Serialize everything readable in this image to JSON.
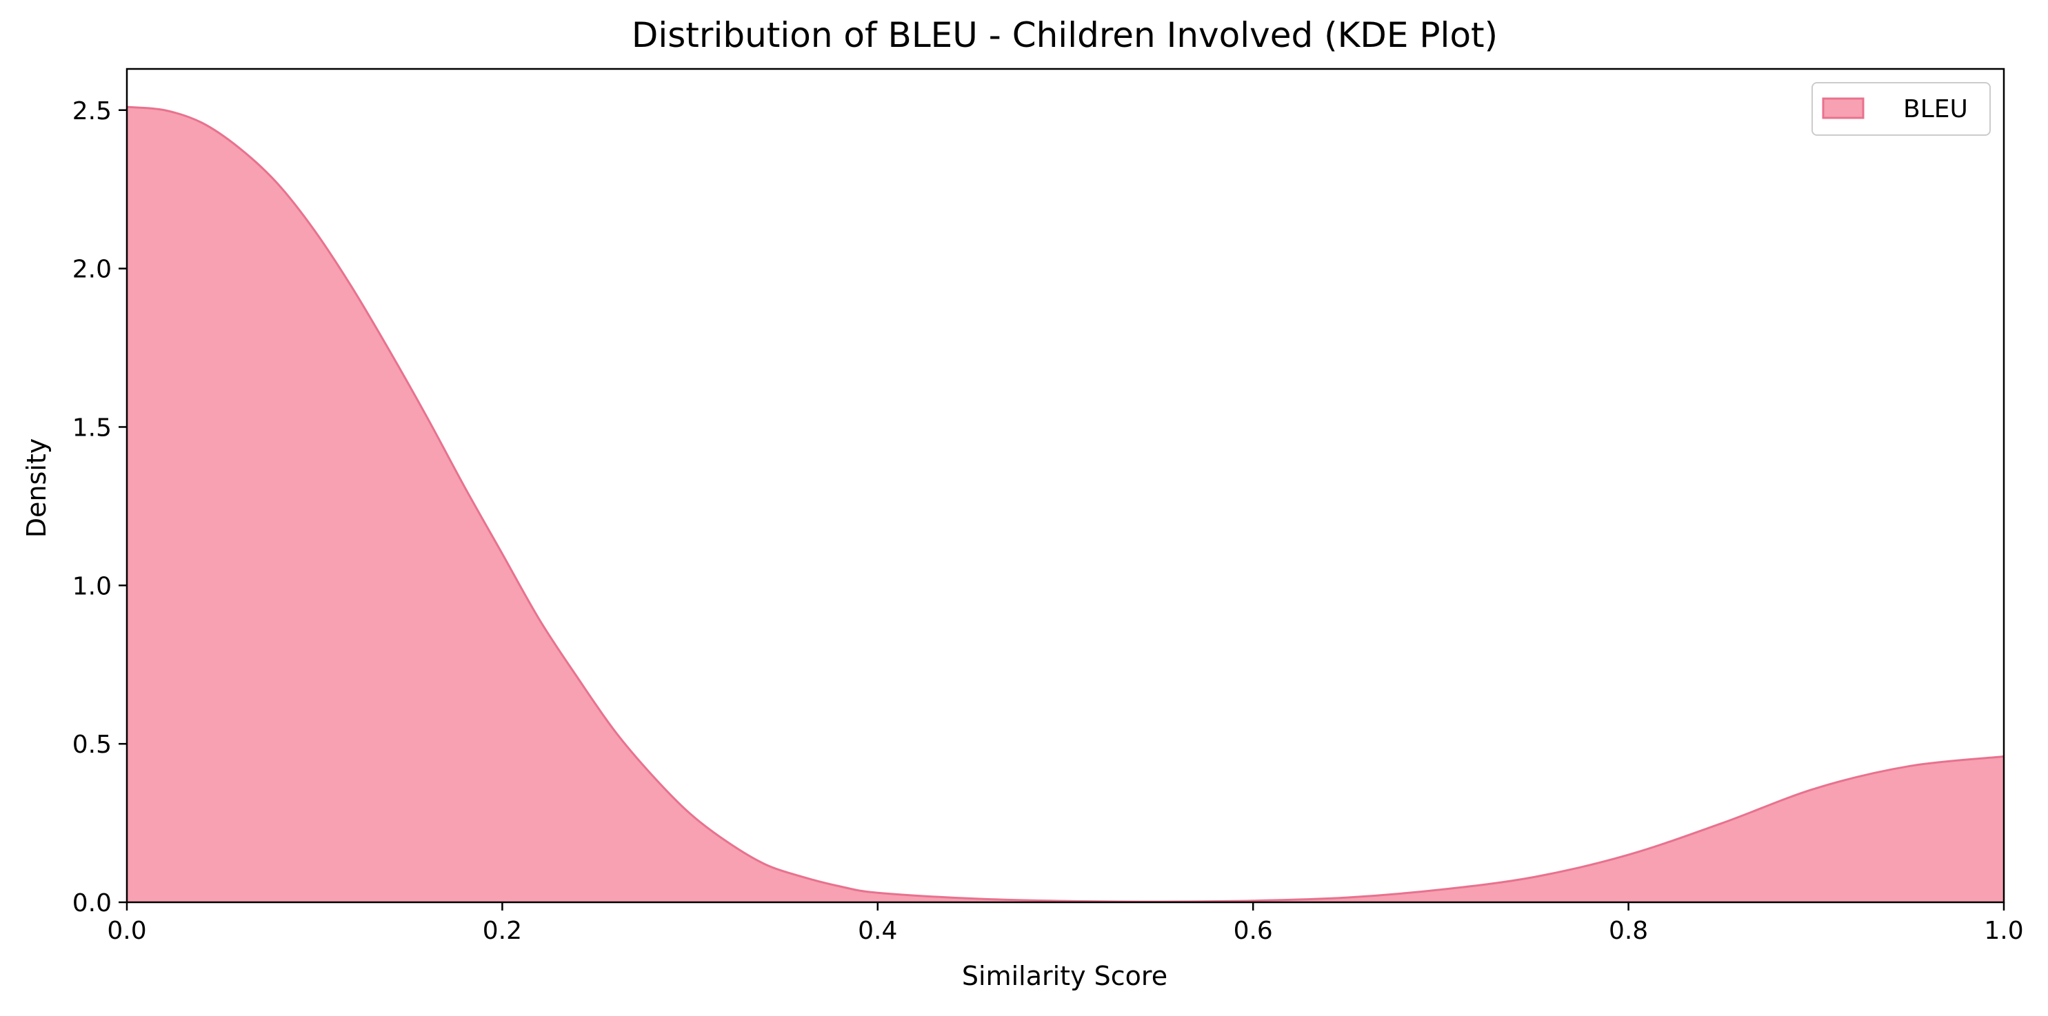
{
  "chart_data": {
    "type": "area",
    "title": "Distribution of BLEU - Children Involved (KDE Plot)",
    "xlabel": "Similarity Score",
    "ylabel": "Density",
    "xlim": [
      0.0,
      1.0
    ],
    "ylim": [
      0.0,
      2.63
    ],
    "x_ticks": [
      0.0,
      0.2,
      0.4,
      0.6,
      0.8,
      1.0
    ],
    "x_tick_labels": [
      "0.0",
      "0.2",
      "0.4",
      "0.6",
      "0.8",
      "1.0"
    ],
    "y_ticks": [
      0.0,
      0.5,
      1.0,
      1.5,
      2.0,
      2.5
    ],
    "y_tick_labels": [
      "0.0",
      "0.5",
      "1.0",
      "1.5",
      "2.0",
      "2.5"
    ],
    "grid": false,
    "legend_position": "top-right",
    "series": [
      {
        "name": "BLEU",
        "fill_color": "#f7a1b2",
        "line_color": "#e8728e",
        "x": [
          0.0,
          0.02,
          0.04,
          0.06,
          0.08,
          0.1,
          0.12,
          0.14,
          0.16,
          0.18,
          0.2,
          0.22,
          0.24,
          0.26,
          0.28,
          0.3,
          0.32,
          0.34,
          0.36,
          0.38,
          0.4,
          0.45,
          0.5,
          0.55,
          0.6,
          0.65,
          0.7,
          0.75,
          0.8,
          0.85,
          0.9,
          0.95,
          1.0
        ],
        "y": [
          2.51,
          2.5,
          2.46,
          2.38,
          2.27,
          2.12,
          1.94,
          1.74,
          1.53,
          1.31,
          1.1,
          0.89,
          0.71,
          0.54,
          0.4,
          0.28,
          0.19,
          0.12,
          0.08,
          0.05,
          0.03,
          0.012,
          0.004,
          0.002,
          0.005,
          0.015,
          0.04,
          0.08,
          0.15,
          0.25,
          0.36,
          0.43,
          0.46
        ]
      }
    ]
  }
}
